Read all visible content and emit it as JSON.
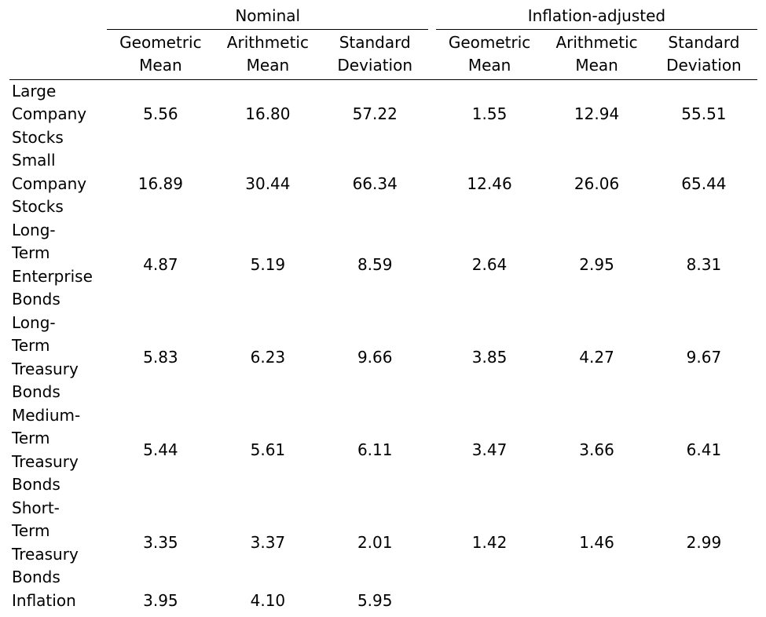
{
  "table": {
    "groups": [
      "Nominal",
      "Inflation-adjusted"
    ],
    "columns": [
      [
        "Geometric",
        "Mean"
      ],
      [
        "Arithmetic",
        "Mean"
      ],
      [
        "Standard",
        "Deviation"
      ]
    ],
    "rows": [
      {
        "label": [
          "Large",
          "Company",
          "Stocks"
        ],
        "values": [
          "5.56",
          "16.80",
          "57.22",
          "1.55",
          "12.94",
          "55.51"
        ]
      },
      {
        "label": [
          "Small",
          "Company",
          "Stocks"
        ],
        "values": [
          "16.89",
          "30.44",
          "66.34",
          "12.46",
          "26.06",
          "65.44"
        ]
      },
      {
        "label": [
          "Long-",
          "Term",
          "Enterprise",
          "Bonds"
        ],
        "values": [
          "4.87",
          "5.19",
          "8.59",
          "2.64",
          "2.95",
          "8.31"
        ]
      },
      {
        "label": [
          "Long-",
          "Term",
          "Treasury",
          "Bonds"
        ],
        "values": [
          "5.83",
          "6.23",
          "9.66",
          "3.85",
          "4.27",
          "9.67"
        ]
      },
      {
        "label": [
          "Medium-",
          "Term",
          "Treasury",
          "Bonds"
        ],
        "values": [
          "5.44",
          "5.61",
          "6.11",
          "3.47",
          "3.66",
          "6.41"
        ]
      },
      {
        "label": [
          "Short-",
          "Term",
          "Treasury",
          "Bonds"
        ],
        "values": [
          "3.35",
          "3.37",
          "2.01",
          "1.42",
          "1.46",
          "2.99"
        ]
      },
      {
        "label": [
          "Inflation"
        ],
        "values": [
          "3.95",
          "4.10",
          "5.95",
          "",
          "",
          ""
        ]
      }
    ]
  }
}
